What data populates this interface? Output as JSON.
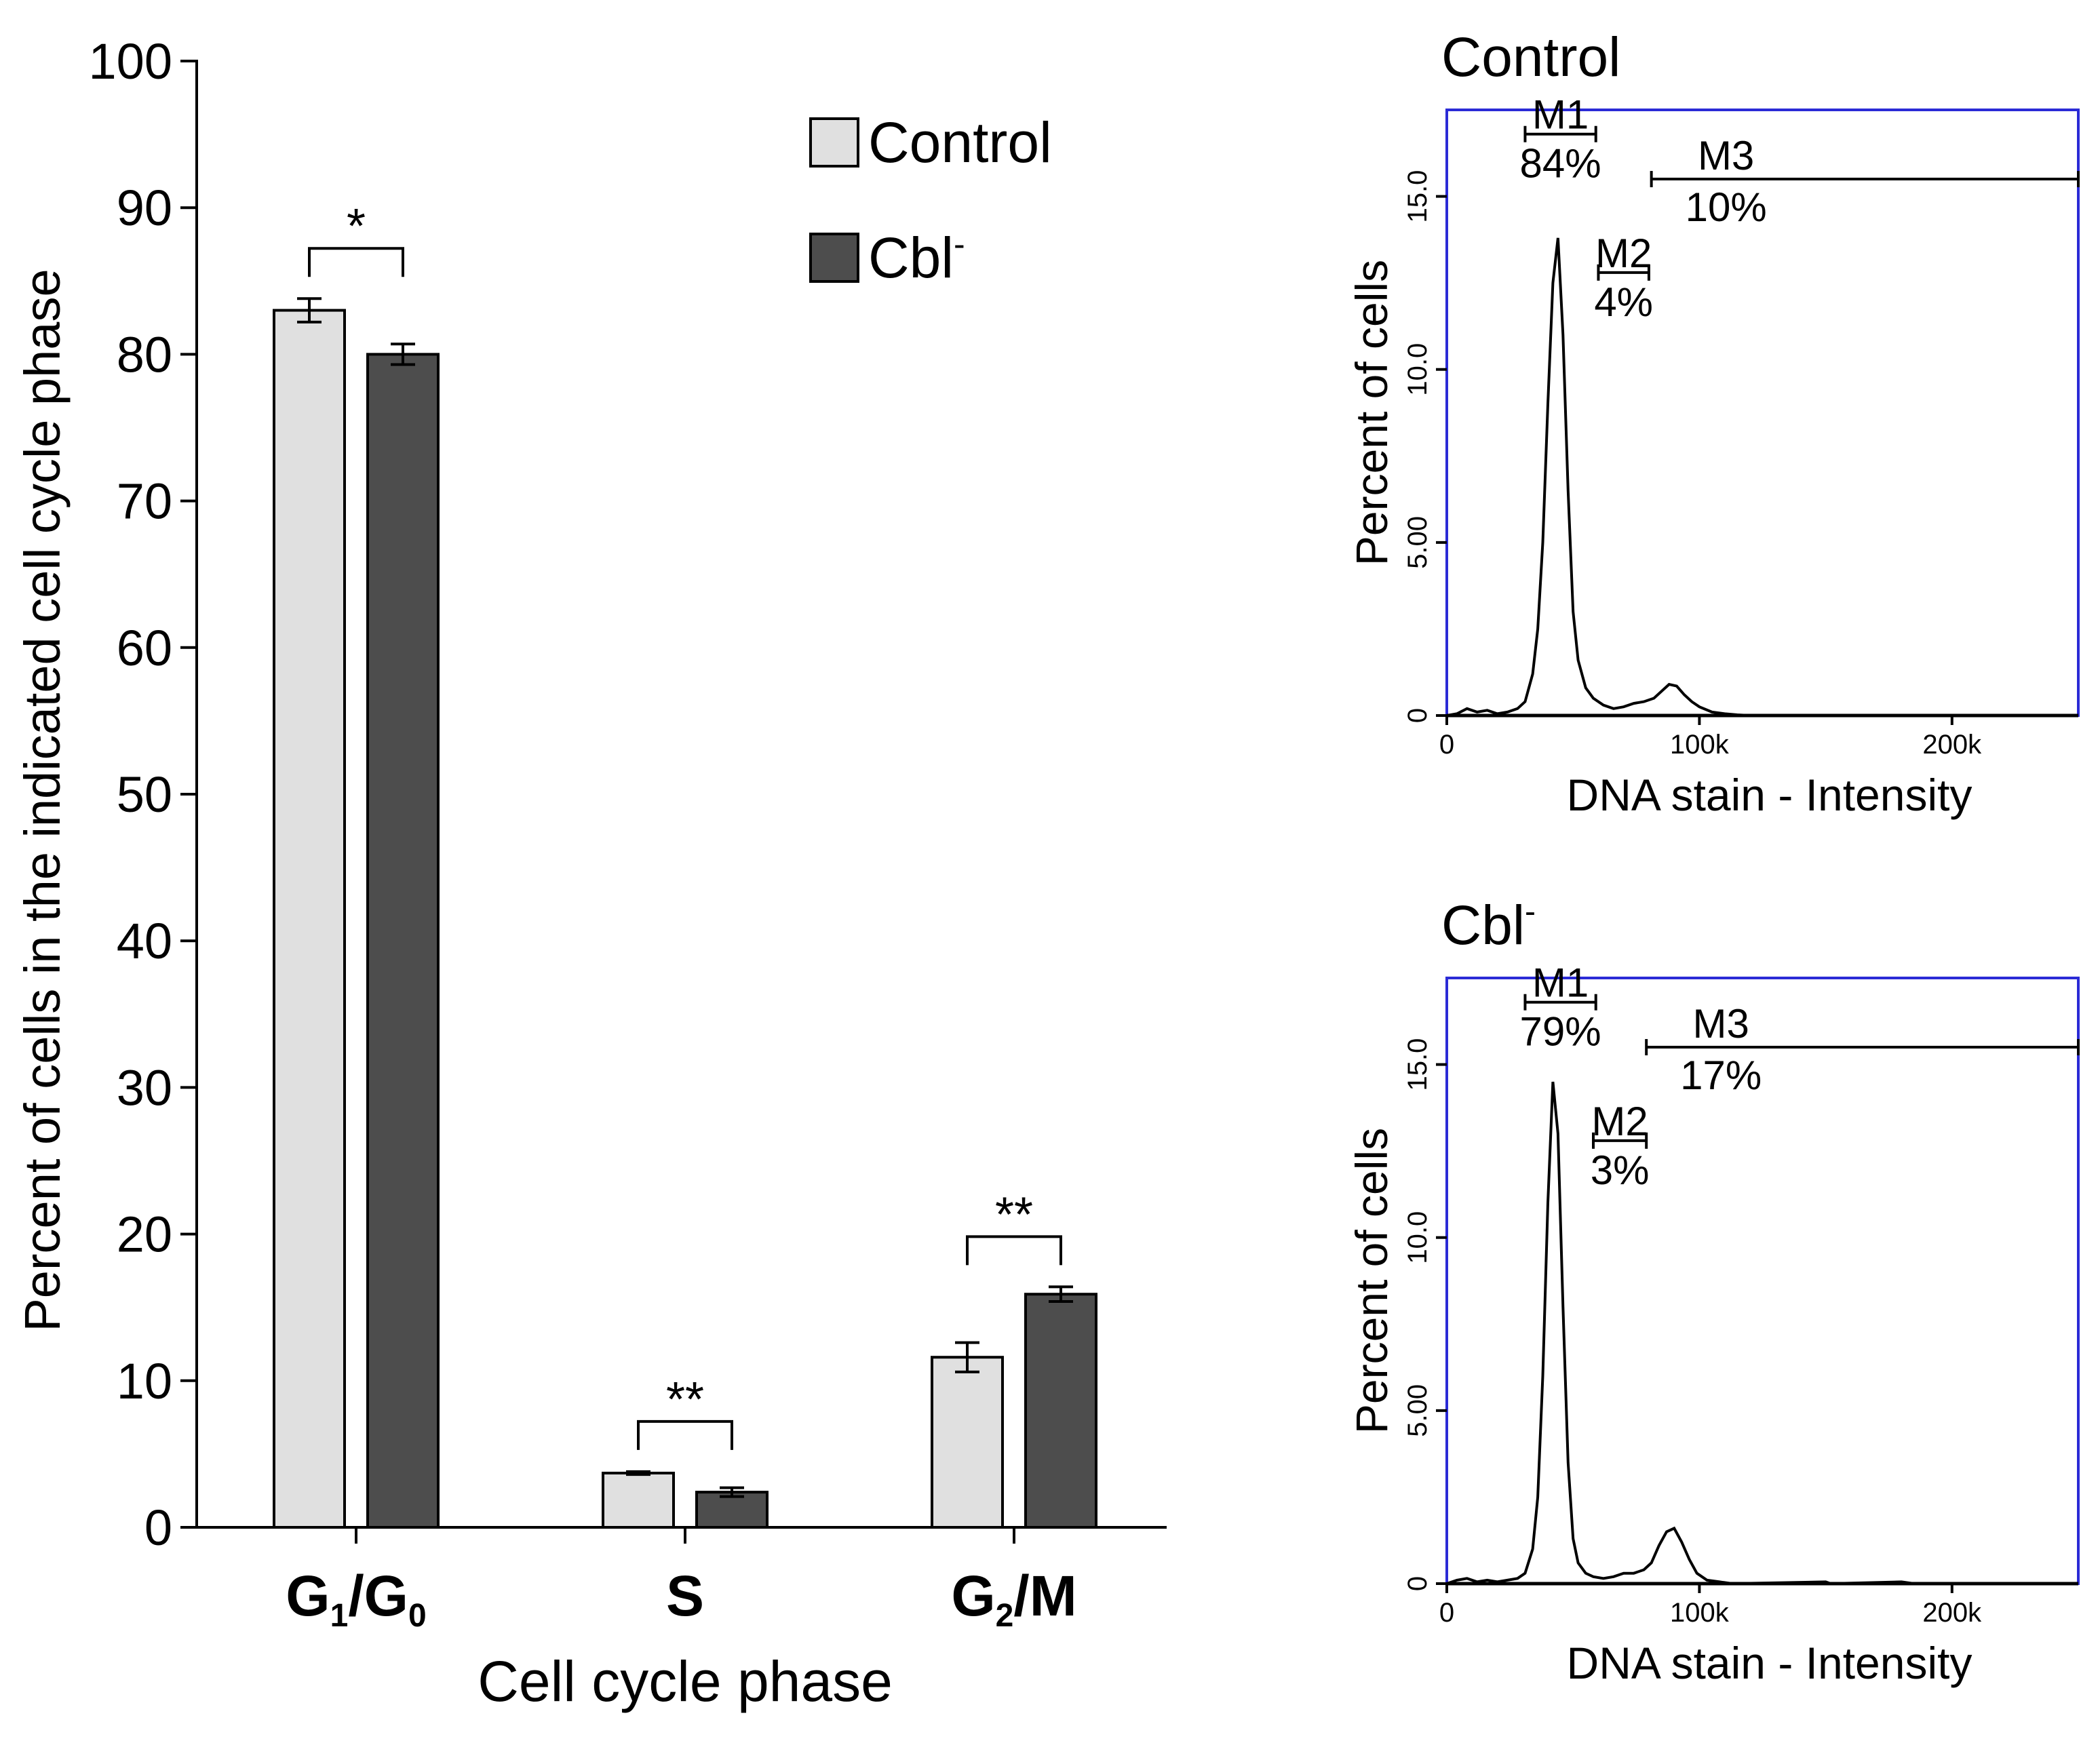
{
  "chart_data": [
    {
      "type": "bar",
      "title": "",
      "xlabel": "Cell cycle phase",
      "ylabel": "Percent of cells in the indicated cell cycle phase",
      "ylim": [
        0,
        100
      ],
      "yticks": [
        "0",
        "10",
        "20",
        "30",
        "40",
        "50",
        "60",
        "70",
        "80",
        "90",
        "100"
      ],
      "categories": [
        {
          "base": "G",
          "sub1": "1",
          "mid": "/G",
          "sub2": "0",
          "tail": ""
        },
        {
          "base": "S",
          "sub1": "",
          "mid": "",
          "sub2": "",
          "tail": ""
        },
        {
          "base": "G",
          "sub1": "2",
          "mid": "/M",
          "sub2": "",
          "tail": ""
        }
      ],
      "series": [
        {
          "name": "Control",
          "color": "#e0e0e0",
          "values": [
            83,
            3.7,
            11.6
          ],
          "errors": [
            0.8,
            0.1,
            1.0
          ]
        },
        {
          "name": "Cbl",
          "name_sup": "-",
          "color": "#4d4d4d",
          "values": [
            80,
            2.4,
            15.9
          ],
          "errors": [
            0.7,
            0.3,
            0.5
          ]
        }
      ],
      "significance": [
        "*",
        "**",
        "**"
      ],
      "legend_position": "top-right"
    },
    {
      "type": "histogram",
      "title": "Control",
      "title_sup": "",
      "xlabel": "DNA stain - Intensity",
      "ylabel": "Percent of cells",
      "xlim": [
        0,
        250000
      ],
      "ylim": [
        0,
        17.5
      ],
      "xticks": [
        {
          "v": 0,
          "label": "0"
        },
        {
          "v": 100000,
          "label": "100k"
        },
        {
          "v": 200000,
          "label": "200k"
        }
      ],
      "yticks": [
        {
          "v": 0,
          "label": "0"
        },
        {
          "v": 5,
          "label": "5.00"
        },
        {
          "v": 10,
          "label": "10.0"
        },
        {
          "v": 15,
          "label": "15.0"
        }
      ],
      "markers": [
        {
          "name": "M1",
          "pct": "84%",
          "range": [
            31000,
            59000
          ],
          "y": 16.8
        },
        {
          "name": "M2",
          "pct": "4%",
          "range": [
            60000,
            80000
          ],
          "y": 12.8
        },
        {
          "name": "M3",
          "pct": "10%",
          "range": [
            81000,
            250000
          ],
          "y": 15.5
        }
      ],
      "profile": [
        [
          0,
          0
        ],
        [
          4000,
          0.05
        ],
        [
          8000,
          0.2
        ],
        [
          12000,
          0.1
        ],
        [
          16000,
          0.15
        ],
        [
          20000,
          0.05
        ],
        [
          24000,
          0.1
        ],
        [
          28000,
          0.2
        ],
        [
          31000,
          0.4
        ],
        [
          34000,
          1.2
        ],
        [
          36000,
          2.5
        ],
        [
          38000,
          5
        ],
        [
          40000,
          9
        ],
        [
          42000,
          12.5
        ],
        [
          44000,
          13.8
        ],
        [
          46000,
          11
        ],
        [
          48000,
          6.5
        ],
        [
          50000,
          3
        ],
        [
          52000,
          1.6
        ],
        [
          55000,
          0.8
        ],
        [
          58000,
          0.5
        ],
        [
          62000,
          0.3
        ],
        [
          66000,
          0.2
        ],
        [
          70000,
          0.25
        ],
        [
          74000,
          0.35
        ],
        [
          78000,
          0.4
        ],
        [
          82000,
          0.5
        ],
        [
          85000,
          0.7
        ],
        [
          88000,
          0.9
        ],
        [
          91000,
          0.85
        ],
        [
          94000,
          0.6
        ],
        [
          97000,
          0.4
        ],
        [
          100000,
          0.25
        ],
        [
          105000,
          0.1
        ],
        [
          110000,
          0.05
        ],
        [
          115000,
          0.02
        ],
        [
          120000,
          0
        ],
        [
          250000,
          0
        ]
      ]
    },
    {
      "type": "histogram",
      "title": "Cbl",
      "title_sup": "-",
      "xlabel": "DNA stain - Intensity",
      "ylabel": "Percent of cells",
      "xlim": [
        0,
        250000
      ],
      "ylim": [
        0,
        17.5
      ],
      "xticks": [
        {
          "v": 0,
          "label": "0"
        },
        {
          "v": 100000,
          "label": "100k"
        },
        {
          "v": 200000,
          "label": "200k"
        }
      ],
      "yticks": [
        {
          "v": 0,
          "label": "0"
        },
        {
          "v": 5,
          "label": "5.00"
        },
        {
          "v": 10,
          "label": "10.0"
        },
        {
          "v": 15,
          "label": "15.0"
        }
      ],
      "markers": [
        {
          "name": "M1",
          "pct": "79%",
          "range": [
            31000,
            59000
          ],
          "y": 16.8
        },
        {
          "name": "M2",
          "pct": "3%",
          "range": [
            58000,
            79000
          ],
          "y": 12.8
        },
        {
          "name": "M3",
          "pct": "17%",
          "range": [
            79000,
            250000
          ],
          "y": 15.5
        }
      ],
      "profile": [
        [
          0,
          0
        ],
        [
          4000,
          0.1
        ],
        [
          8000,
          0.15
        ],
        [
          12000,
          0.05
        ],
        [
          16000,
          0.1
        ],
        [
          20000,
          0.05
        ],
        [
          24000,
          0.1
        ],
        [
          28000,
          0.15
        ],
        [
          31000,
          0.3
        ],
        [
          34000,
          1.0
        ],
        [
          36000,
          2.5
        ],
        [
          38000,
          6
        ],
        [
          40000,
          11
        ],
        [
          42000,
          14.5
        ],
        [
          44000,
          13
        ],
        [
          46000,
          8
        ],
        [
          48000,
          3.5
        ],
        [
          50000,
          1.3
        ],
        [
          52000,
          0.6
        ],
        [
          55000,
          0.3
        ],
        [
          58000,
          0.2
        ],
        [
          62000,
          0.15
        ],
        [
          66000,
          0.2
        ],
        [
          70000,
          0.3
        ],
        [
          74000,
          0.3
        ],
        [
          78000,
          0.4
        ],
        [
          81000,
          0.6
        ],
        [
          84000,
          1.1
        ],
        [
          87000,
          1.5
        ],
        [
          90000,
          1.6
        ],
        [
          93000,
          1.2
        ],
        [
          96000,
          0.7
        ],
        [
          99000,
          0.3
        ],
        [
          103000,
          0.1
        ],
        [
          108000,
          0.05
        ],
        [
          113000,
          0
        ],
        [
          150000,
          0.05
        ],
        [
          152000,
          0
        ],
        [
          180000,
          0.05
        ],
        [
          185000,
          0
        ],
        [
          250000,
          0
        ]
      ]
    }
  ]
}
